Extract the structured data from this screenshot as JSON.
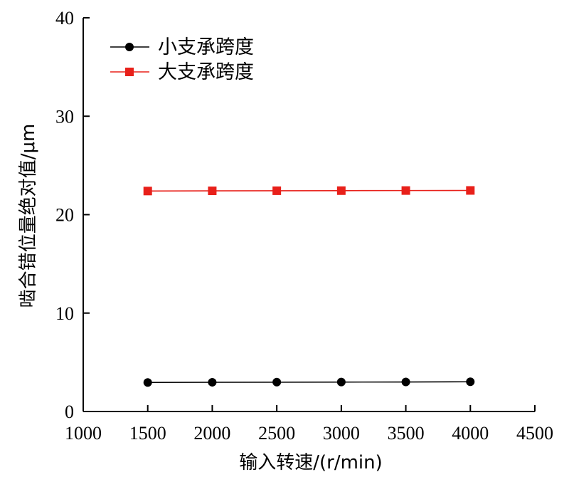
{
  "chart_data": {
    "type": "line",
    "xlabel": "输入转速/(r/min)",
    "ylabel": "啮合错位量绝对值/μm",
    "xlim": [
      1000,
      4500
    ],
    "ylim": [
      0,
      40
    ],
    "xticks": [
      "1000",
      "1500",
      "2000",
      "2500",
      "3000",
      "3500",
      "4000",
      "4500"
    ],
    "yticks": [
      "0",
      "10",
      "20",
      "30",
      "40"
    ],
    "grid": false,
    "legend_position": "top-left",
    "series": [
      {
        "name": "小支承跨度",
        "color": "#000000",
        "marker": "circle",
        "x": [
          1500,
          2000,
          2500,
          3000,
          3500,
          4000
        ],
        "values": [
          2.95,
          2.97,
          2.98,
          2.99,
          3.0,
          3.02
        ]
      },
      {
        "name": "大支承跨度",
        "color": "#e8201a",
        "marker": "square",
        "x": [
          1500,
          2000,
          2500,
          3000,
          3500,
          4000
        ],
        "values": [
          22.4,
          22.42,
          22.43,
          22.44,
          22.45,
          22.46
        ]
      }
    ]
  }
}
